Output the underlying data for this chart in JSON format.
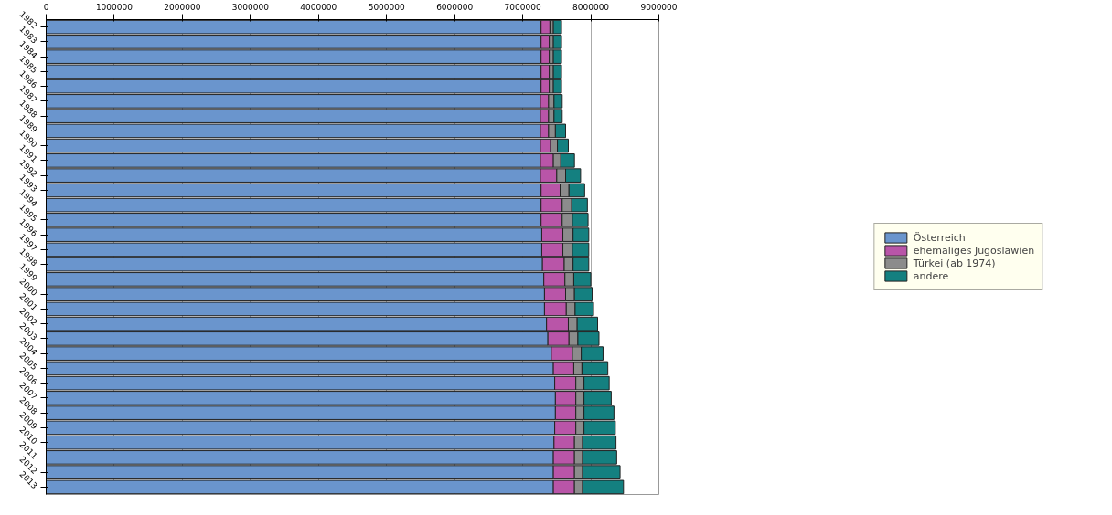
{
  "chart_data": {
    "type": "bar",
    "orientation": "horizontal",
    "stacked": true,
    "categories": [
      "1982",
      "1983",
      "1984",
      "1985",
      "1986",
      "1987",
      "1988",
      "1989",
      "1990",
      "1991",
      "1992",
      "1993",
      "1994",
      "1995",
      "1996",
      "1997",
      "1998",
      "1999",
      "2000",
      "2001",
      "2002",
      "2003",
      "2004",
      "2005",
      "2006",
      "2007",
      "2008",
      "2009",
      "2010",
      "2011",
      "2012",
      "2013"
    ],
    "series": [
      {
        "name": "Österreich",
        "color": "#6a95cd",
        "values": [
          7270000,
          7270000,
          7270000,
          7270000,
          7270000,
          7260000,
          7260000,
          7260000,
          7260000,
          7260000,
          7260000,
          7270000,
          7270000,
          7270000,
          7280000,
          7280000,
          7290000,
          7310000,
          7320000,
          7320000,
          7350000,
          7370000,
          7420000,
          7450000,
          7470000,
          7480000,
          7480000,
          7470000,
          7460000,
          7450000,
          7450000,
          7450000
        ]
      },
      {
        "name": "ehemaliges Jugoslawien",
        "color": "#b955a8",
        "values": [
          130000,
          120000,
          120000,
          120000,
          120000,
          120000,
          120000,
          120000,
          150000,
          190000,
          240000,
          280000,
          310000,
          310000,
          310000,
          310000,
          320000,
          310000,
          310000,
          320000,
          320000,
          310000,
          310000,
          300000,
          310000,
          300000,
          300000,
          310000,
          300000,
          310000,
          310000,
          310000
        ]
      },
      {
        "name": "Türkei (ab 1974)",
        "color": "#8c8c8c",
        "values": [
          50000,
          60000,
          60000,
          60000,
          60000,
          80000,
          80000,
          100000,
          100000,
          110000,
          130000,
          130000,
          140000,
          150000,
          150000,
          140000,
          130000,
          130000,
          130000,
          130000,
          130000,
          130000,
          130000,
          120000,
          120000,
          120000,
          120000,
          120000,
          120000,
          120000,
          120000,
          120000
        ]
      },
      {
        "name": "andere",
        "color": "#148080",
        "values": [
          120000,
          120000,
          120000,
          120000,
          120000,
          120000,
          120000,
          150000,
          160000,
          200000,
          220000,
          230000,
          230000,
          230000,
          230000,
          240000,
          230000,
          250000,
          260000,
          270000,
          300000,
          310000,
          320000,
          380000,
          370000,
          400000,
          440000,
          460000,
          490000,
          500000,
          550000,
          600000
        ]
      }
    ],
    "xlim": [
      0,
      9000000
    ],
    "xticks": [
      0,
      1000000,
      2000000,
      3000000,
      4000000,
      5000000,
      6000000,
      7000000,
      8000000,
      9000000
    ],
    "grid": "x",
    "legend": "right"
  }
}
